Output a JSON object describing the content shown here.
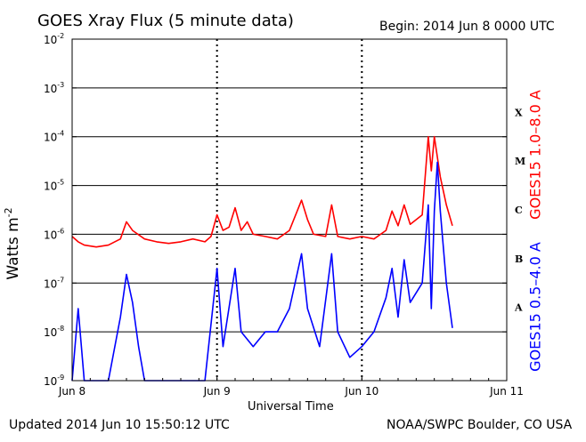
{
  "header": {
    "title": "GOES Xray Flux (5 minute data)",
    "begin": "Begin:  2014 Jun 8 0000 UTC"
  },
  "footer": {
    "updated": "Updated 2014 Jun 10 15:50:12 UTC",
    "credit": "NOAA/SWPC Boulder, CO USA"
  },
  "chart_data": {
    "type": "line",
    "title": "GOES Xray Flux (5 minute data)",
    "xlabel": "Universal Time",
    "ylabel": "Watts m",
    "ylabel_exponent": "-2",
    "y_scale": "log",
    "ylim": [
      1e-09,
      0.01
    ],
    "y_ticks": [
      {
        "value": 1e-09,
        "label": "10",
        "exp": "-9"
      },
      {
        "value": 1e-08,
        "label": "10",
        "exp": "-8"
      },
      {
        "value": 1e-07,
        "label": "10",
        "exp": "-7"
      },
      {
        "value": 1e-06,
        "label": "10",
        "exp": "-6"
      },
      {
        "value": 1e-05,
        "label": "10",
        "exp": "-5"
      },
      {
        "value": 0.0001,
        "label": "10",
        "exp": "-4"
      },
      {
        "value": 0.001,
        "label": "10",
        "exp": "-3"
      },
      {
        "value": 0.01,
        "label": "10",
        "exp": "-2"
      }
    ],
    "xlim": [
      "2014-06-08 00:00",
      "2014-06-11 00:00"
    ],
    "x_ticks": [
      {
        "value": "2014-06-08 00:00",
        "label": "Jun 8"
      },
      {
        "value": "2014-06-09 00:00",
        "label": "Jun 9"
      },
      {
        "value": "2014-06-10 00:00",
        "label": "Jun 10"
      },
      {
        "value": "2014-06-11 00:00",
        "label": "Jun 11"
      }
    ],
    "grid": "horizontal at each decade",
    "flare_classes": [
      {
        "label": "A",
        "value": 1e-08
      },
      {
        "label": "B",
        "value": 1e-07
      },
      {
        "label": "C",
        "value": 1e-06
      },
      {
        "label": "M",
        "value": 1e-05
      },
      {
        "label": "X",
        "value": 0.0001
      }
    ],
    "series": [
      {
        "name": "GOES15 1.0–8.0 A",
        "color": "#ff0000",
        "points": [
          [
            "2014-06-08 00:00",
            9e-07
          ],
          [
            "2014-06-08 01:00",
            7e-07
          ],
          [
            "2014-06-08 02:00",
            6e-07
          ],
          [
            "2014-06-08 04:00",
            5.5e-07
          ],
          [
            "2014-06-08 06:00",
            6e-07
          ],
          [
            "2014-06-08 08:00",
            8e-07
          ],
          [
            "2014-06-08 09:00",
            1.8e-06
          ],
          [
            "2014-06-08 10:00",
            1.2e-06
          ],
          [
            "2014-06-08 12:00",
            8e-07
          ],
          [
            "2014-06-08 14:00",
            7e-07
          ],
          [
            "2014-06-08 16:00",
            6.5e-07
          ],
          [
            "2014-06-08 18:00",
            7e-07
          ],
          [
            "2014-06-08 20:00",
            8e-07
          ],
          [
            "2014-06-08 22:00",
            7e-07
          ],
          [
            "2014-06-08 23:00",
            9e-07
          ],
          [
            "2014-06-09 00:00",
            2.5e-06
          ],
          [
            "2014-06-09 01:00",
            1.2e-06
          ],
          [
            "2014-06-09 02:00",
            1.4e-06
          ],
          [
            "2014-06-09 03:00",
            3.5e-06
          ],
          [
            "2014-06-09 04:00",
            1.2e-06
          ],
          [
            "2014-06-09 05:00",
            1.8e-06
          ],
          [
            "2014-06-09 06:00",
            1e-06
          ],
          [
            "2014-06-09 08:00",
            9e-07
          ],
          [
            "2014-06-09 10:00",
            8e-07
          ],
          [
            "2014-06-09 12:00",
            1.2e-06
          ],
          [
            "2014-06-09 14:00",
            5e-06
          ],
          [
            "2014-06-09 15:00",
            2e-06
          ],
          [
            "2014-06-09 16:00",
            1e-06
          ],
          [
            "2014-06-09 18:00",
            9e-07
          ],
          [
            "2014-06-09 19:00",
            4e-06
          ],
          [
            "2014-06-09 20:00",
            9e-07
          ],
          [
            "2014-06-09 22:00",
            8e-07
          ],
          [
            "2014-06-10 00:00",
            9e-07
          ],
          [
            "2014-06-10 02:00",
            8e-07
          ],
          [
            "2014-06-10 04:00",
            1.2e-06
          ],
          [
            "2014-06-10 05:00",
            3e-06
          ],
          [
            "2014-06-10 06:00",
            1.5e-06
          ],
          [
            "2014-06-10 07:00",
            4e-06
          ],
          [
            "2014-06-10 08:00",
            1.6e-06
          ],
          [
            "2014-06-10 10:00",
            2.5e-06
          ],
          [
            "2014-06-10 11:00",
            0.0001
          ],
          [
            "2014-06-10 11:30",
            2e-05
          ],
          [
            "2014-06-10 12:00",
            0.0001
          ],
          [
            "2014-06-10 13:00",
            1.5e-05
          ],
          [
            "2014-06-10 14:00",
            4e-06
          ],
          [
            "2014-06-10 15:00",
            1.5e-06
          ]
        ]
      },
      {
        "name": "GOES15 0.5–4.0 A",
        "color": "#0000ff",
        "points": [
          [
            "2014-06-08 00:00",
            1e-09
          ],
          [
            "2014-06-08 01:00",
            3e-08
          ],
          [
            "2014-06-08 02:00",
            1e-09
          ],
          [
            "2014-06-08 04:00",
            1e-09
          ],
          [
            "2014-06-08 06:00",
            1e-09
          ],
          [
            "2014-06-08 08:00",
            2e-08
          ],
          [
            "2014-06-08 09:00",
            1.5e-07
          ],
          [
            "2014-06-08 10:00",
            4e-08
          ],
          [
            "2014-06-08 11:00",
            5e-09
          ],
          [
            "2014-06-08 12:00",
            1e-09
          ],
          [
            "2014-06-08 14:00",
            1e-09
          ],
          [
            "2014-06-08 16:00",
            1e-09
          ],
          [
            "2014-06-08 18:00",
            1e-09
          ],
          [
            "2014-06-08 20:00",
            1e-09
          ],
          [
            "2014-06-08 22:00",
            1e-09
          ],
          [
            "2014-06-09 00:00",
            2e-07
          ],
          [
            "2014-06-09 01:00",
            5e-09
          ],
          [
            "2014-06-09 03:00",
            2e-07
          ],
          [
            "2014-06-09 04:00",
            1e-08
          ],
          [
            "2014-06-09 06:00",
            5e-09
          ],
          [
            "2014-06-09 08:00",
            1e-08
          ],
          [
            "2014-06-09 10:00",
            1e-08
          ],
          [
            "2014-06-09 12:00",
            3e-08
          ],
          [
            "2014-06-09 14:00",
            4e-07
          ],
          [
            "2014-06-09 15:00",
            3e-08
          ],
          [
            "2014-06-09 17:00",
            5e-09
          ],
          [
            "2014-06-09 19:00",
            4e-07
          ],
          [
            "2014-06-09 20:00",
            1e-08
          ],
          [
            "2014-06-09 22:00",
            3e-09
          ],
          [
            "2014-06-10 00:00",
            5e-09
          ],
          [
            "2014-06-10 02:00",
            1e-08
          ],
          [
            "2014-06-10 04:00",
            5e-08
          ],
          [
            "2014-06-10 05:00",
            2e-07
          ],
          [
            "2014-06-10 06:00",
            2e-08
          ],
          [
            "2014-06-10 07:00",
            3e-07
          ],
          [
            "2014-06-10 08:00",
            4e-08
          ],
          [
            "2014-06-10 10:00",
            1e-07
          ],
          [
            "2014-06-10 11:00",
            4e-06
          ],
          [
            "2014-06-10 11:30",
            3e-08
          ],
          [
            "2014-06-10 12:00",
            3e-06
          ],
          [
            "2014-06-10 12:30",
            3e-05
          ],
          [
            "2014-06-10 13:00",
            3e-06
          ],
          [
            "2014-06-10 14:00",
            1e-07
          ],
          [
            "2014-06-10 15:00",
            1.2e-08
          ]
        ]
      }
    ]
  }
}
